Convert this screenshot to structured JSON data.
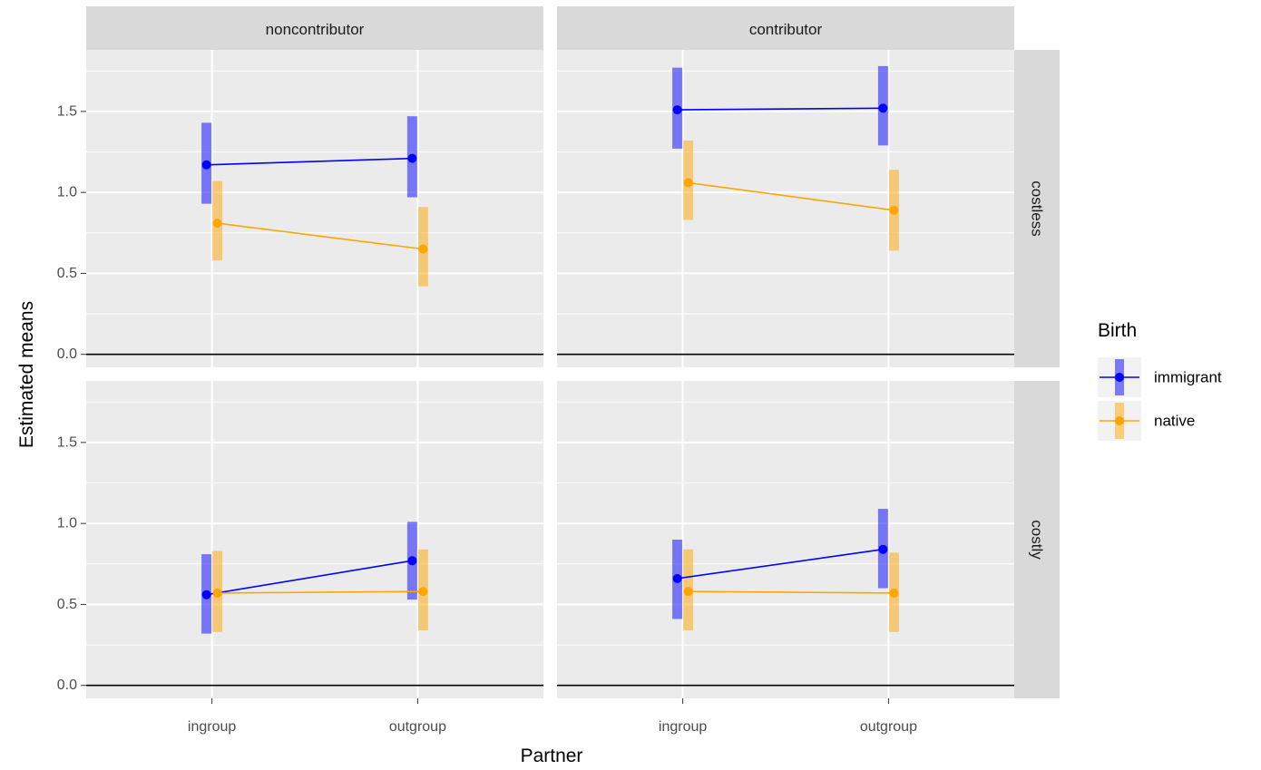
{
  "chart_data": {
    "type": "line",
    "xlabel": "Partner",
    "ylabel": "Estimated means",
    "x_categories": [
      "ingroup",
      "outgroup"
    ],
    "y_ticks": [
      "0.0",
      "0.5",
      "1.0",
      "1.5"
    ],
    "y_tick_values": [
      0,
      0.5,
      1.0,
      1.5
    ],
    "ylim": [
      -0.08,
      1.88
    ],
    "grid": true,
    "reference_line_y": 0,
    "legend": {
      "title": "Birth",
      "position": "right",
      "entries": [
        "immigrant",
        "native"
      ]
    },
    "colors": {
      "immigrant": "#0000ff",
      "native": "#ffa500"
    },
    "column_facets": [
      "noncontributor",
      "contributor"
    ],
    "row_facets": [
      "costless",
      "costly"
    ],
    "panels": [
      {
        "column": "noncontributor",
        "row": "costless",
        "series": [
          {
            "name": "immigrant",
            "values": [
              1.17,
              1.21
            ],
            "lower": [
              0.93,
              0.97
            ],
            "upper": [
              1.43,
              1.47
            ]
          },
          {
            "name": "native",
            "values": [
              0.81,
              0.65
            ],
            "lower": [
              0.58,
              0.42
            ],
            "upper": [
              1.07,
              0.91
            ]
          }
        ]
      },
      {
        "column": "contributor",
        "row": "costless",
        "series": [
          {
            "name": "immigrant",
            "values": [
              1.51,
              1.52
            ],
            "lower": [
              1.27,
              1.29
            ],
            "upper": [
              1.77,
              1.78
            ]
          },
          {
            "name": "native",
            "values": [
              1.06,
              0.89
            ],
            "lower": [
              0.83,
              0.64
            ],
            "upper": [
              1.32,
              1.14
            ]
          }
        ]
      },
      {
        "column": "noncontributor",
        "row": "costly",
        "series": [
          {
            "name": "immigrant",
            "values": [
              0.56,
              0.77
            ],
            "lower": [
              0.32,
              0.53
            ],
            "upper": [
              0.81,
              1.01
            ]
          },
          {
            "name": "native",
            "values": [
              0.57,
              0.58
            ],
            "lower": [
              0.33,
              0.34
            ],
            "upper": [
              0.83,
              0.84
            ]
          }
        ]
      },
      {
        "column": "contributor",
        "row": "costly",
        "series": [
          {
            "name": "immigrant",
            "values": [
              0.66,
              0.84
            ],
            "lower": [
              0.41,
              0.6
            ],
            "upper": [
              0.9,
              1.09
            ]
          },
          {
            "name": "native",
            "values": [
              0.58,
              0.57
            ],
            "lower": [
              0.34,
              0.33
            ],
            "upper": [
              0.84,
              0.82
            ]
          }
        ]
      }
    ]
  }
}
